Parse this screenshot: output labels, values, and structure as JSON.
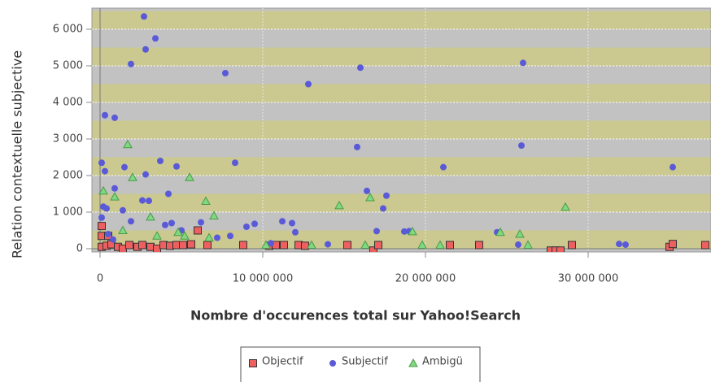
{
  "chart_data": {
    "type": "scatter",
    "x_label": "Nombre d'occurences total sur Yahoo!Search",
    "y_label": "Relation contextuelle subjective",
    "xlim": [
      -500000,
      37550000
    ],
    "ylim": [
      -89,
      6578
    ],
    "xticks": [
      0,
      {
        "value": 10000000,
        "label": "10 000 000"
      },
      {
        "value": 20000000,
        "label": "20 000 000"
      },
      {
        "value": 30000000,
        "label": "30 000 000"
      }
    ],
    "yticks": [
      0,
      {
        "value": 1000,
        "label": "1 000"
      },
      {
        "value": 2000,
        "label": "2 000"
      },
      {
        "value": 3000,
        "label": "3 000"
      },
      {
        "value": 4000,
        "label": "4 000"
      },
      {
        "value": 5000,
        "label": "5 000"
      },
      {
        "value": 6000,
        "label": "6 000"
      }
    ],
    "grid": true,
    "series": [
      {
        "name": "Objectif",
        "color": "#ee6060",
        "marker": "square",
        "x": [
          100000,
          100000,
          500000,
          100000,
          400000,
          700000,
          1100000,
          1400000,
          1800000,
          2300000,
          2600000,
          3100000,
          3500000,
          3900000,
          4300000,
          4700000,
          5100000,
          5600000,
          6000000,
          6600000,
          8800000,
          10400000,
          10800000,
          11300000,
          12200000,
          12600000,
          15200000,
          16800000,
          17100000,
          21500000,
          23300000,
          27700000,
          28000000,
          28300000,
          29000000,
          35000000,
          35200000,
          37200000
        ],
        "values": [
          620,
          350,
          350,
          50,
          80,
          120,
          50,
          0,
          100,
          50,
          100,
          50,
          0,
          100,
          80,
          100,
          100,
          120,
          500,
          100,
          100,
          80,
          100,
          100,
          100,
          80,
          100,
          -50,
          100,
          100,
          100,
          -50,
          -50,
          -50,
          100,
          50,
          130,
          100
        ]
      },
      {
        "name": "Subjectif",
        "color": "#5a5ad8",
        "marker": "circle",
        "x": [
          2700000,
          3400000,
          2800000,
          1900000,
          7700000,
          12800000,
          16000000,
          26000000,
          300000,
          900000,
          15800000,
          25900000,
          3700000,
          8300000,
          4700000,
          1500000,
          21100000,
          35200000,
          100000,
          300000,
          2800000,
          900000,
          4200000,
          16400000,
          17600000,
          2600000,
          3000000,
          17400000,
          200000,
          400000,
          1400000,
          100000,
          1900000,
          6200000,
          9000000,
          9500000,
          11200000,
          11800000,
          12000000,
          17000000,
          18700000,
          19000000,
          24400000,
          4000000,
          4400000,
          5000000,
          7200000,
          8000000,
          31900000,
          32300000,
          25700000,
          14000000,
          10500000,
          500000,
          800000
        ],
        "values": [
          6350,
          5750,
          5450,
          5050,
          4800,
          4500,
          4950,
          5080,
          3650,
          3580,
          2780,
          2820,
          2400,
          2350,
          2250,
          2230,
          2230,
          2230,
          2350,
          2120,
          2030,
          1650,
          1500,
          1580,
          1450,
          1320,
          1310,
          1100,
          1150,
          1100,
          1050,
          850,
          750,
          720,
          600,
          680,
          750,
          700,
          450,
          480,
          470,
          480,
          450,
          650,
          700,
          500,
          300,
          350,
          130,
          110,
          110,
          120,
          150,
          400,
          250
        ]
      },
      {
        "name": "Ambigü",
        "color": "#80d880",
        "marker": "triangle",
        "x": [
          1700000,
          2000000,
          5500000,
          200000,
          900000,
          6500000,
          16600000,
          14700000,
          28600000,
          3100000,
          7000000,
          1400000,
          19200000,
          24600000,
          25800000,
          3500000,
          10200000,
          13000000,
          16300000,
          19800000,
          20900000,
          26300000,
          4800000,
          5200000,
          6700000
        ],
        "values": [
          2850,
          1950,
          1950,
          1580,
          1420,
          1300,
          1400,
          1180,
          1140,
          870,
          900,
          500,
          470,
          450,
          400,
          350,
          100,
          100,
          100,
          100,
          100,
          100,
          450,
          350,
          300
        ]
      }
    ]
  }
}
